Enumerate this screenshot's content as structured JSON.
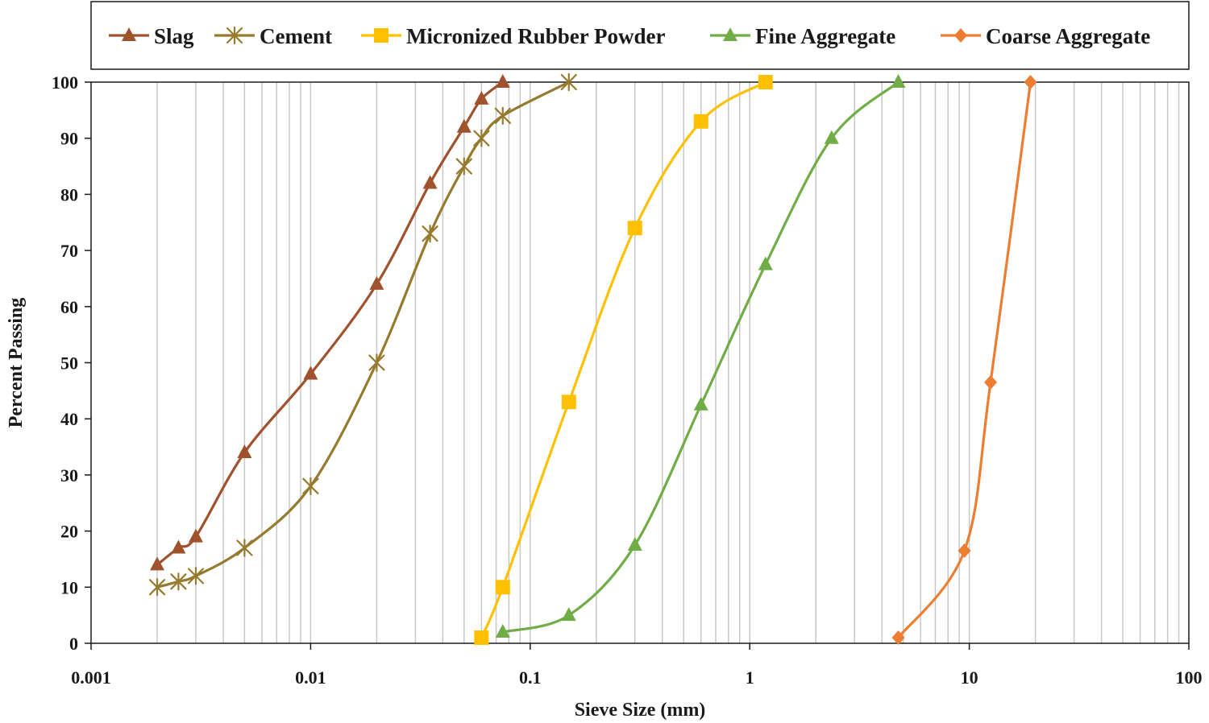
{
  "chart_data": {
    "type": "line",
    "title": "",
    "xlabel": "Sieve Size (mm)",
    "ylabel": "Percent Passing",
    "x_scale": "log",
    "xlim": [
      0.001,
      100
    ],
    "ylim": [
      0,
      100
    ],
    "x_tick_labels": [
      "0.001",
      "0.01",
      "0.1",
      "1",
      "10",
      "100"
    ],
    "y_tick_labels": [
      "0",
      "10",
      "20",
      "30",
      "40",
      "50",
      "60",
      "70",
      "80",
      "90",
      "100"
    ],
    "grid": "vertical minor and major gridlines on x axis",
    "legend_position": "top",
    "series": [
      {
        "name": "Slag",
        "color": "#A0522D",
        "marker": "triangle",
        "x": [
          0.002,
          0.0025,
          0.003,
          0.005,
          0.01,
          0.02,
          0.035,
          0.05,
          0.06,
          0.075
        ],
        "y": [
          14,
          17,
          19,
          34,
          48,
          64,
          82,
          92,
          97,
          100
        ]
      },
      {
        "name": "Cement",
        "color": "#967A2E",
        "marker": "star",
        "x": [
          0.002,
          0.0025,
          0.003,
          0.005,
          0.01,
          0.02,
          0.035,
          0.05,
          0.06,
          0.075,
          0.15
        ],
        "y": [
          10,
          11,
          12,
          17,
          28,
          50,
          73,
          85,
          90,
          94,
          100
        ]
      },
      {
        "name": "Micronized Rubber Powder",
        "color": "#FFC000",
        "marker": "square",
        "x": [
          0.06,
          0.075,
          0.15,
          0.3,
          0.6,
          1.18
        ],
        "y": [
          1,
          10,
          43,
          74,
          93,
          100
        ]
      },
      {
        "name": "Fine Aggregate",
        "color": "#70AD47",
        "marker": "triangle",
        "x": [
          0.075,
          0.15,
          0.3,
          0.6,
          1.18,
          2.36,
          4.75
        ],
        "y": [
          2,
          5,
          17.5,
          42.5,
          67.5,
          90,
          100
        ]
      },
      {
        "name": "Coarse Aggregate",
        "color": "#ED7D31",
        "marker": "diamond",
        "x": [
          4.75,
          9.5,
          12.5,
          19
        ],
        "y": [
          1,
          16.5,
          46.5,
          100
        ]
      }
    ]
  }
}
